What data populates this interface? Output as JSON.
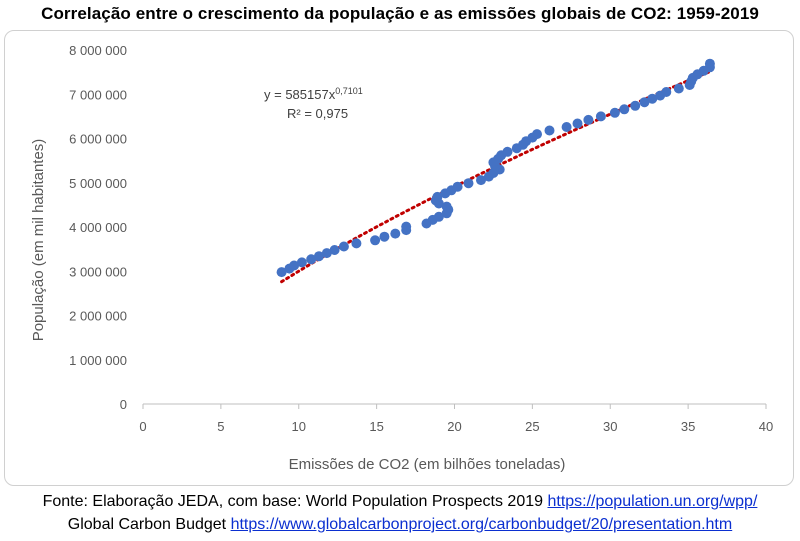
{
  "title": "Correlação entre o crescimento da população e as emissões globais de CO2: 1959-2019",
  "chart_data": {
    "type": "scatter",
    "xlabel": "Emissões de CO2 (em bilhões toneladas)",
    "ylabel": "População (em mil habitantes)",
    "xlim": [
      0,
      40
    ],
    "ylim": [
      0,
      8000000
    ],
    "x_ticks": [
      "0",
      "5",
      "10",
      "15",
      "20",
      "25",
      "30",
      "35",
      "40"
    ],
    "y_ticks": [
      "0",
      "1 000 000",
      "2 000 000",
      "3 000 000",
      "4 000 000",
      "5 000 000",
      "6 000 000",
      "7 000 000",
      "8 000 000"
    ],
    "points": [
      [
        8.9,
        2980000
      ],
      [
        9.4,
        3060000
      ],
      [
        9.7,
        3130000
      ],
      [
        10.2,
        3200000
      ],
      [
        10.8,
        3270000
      ],
      [
        11.3,
        3340000
      ],
      [
        11.8,
        3410000
      ],
      [
        12.3,
        3480000
      ],
      [
        12.9,
        3560000
      ],
      [
        13.7,
        3630000
      ],
      [
        14.9,
        3700000
      ],
      [
        15.5,
        3780000
      ],
      [
        16.2,
        3850000
      ],
      [
        16.9,
        3930000
      ],
      [
        16.9,
        4010000
      ],
      [
        18.2,
        4080000
      ],
      [
        18.6,
        4160000
      ],
      [
        19.0,
        4230000
      ],
      [
        19.5,
        4310000
      ],
      [
        19.6,
        4390000
      ],
      [
        19.5,
        4460000
      ],
      [
        19.0,
        4530000
      ],
      [
        18.8,
        4600000
      ],
      [
        18.9,
        4680000
      ],
      [
        19.4,
        4760000
      ],
      [
        19.8,
        4830000
      ],
      [
        20.2,
        4910000
      ],
      [
        20.9,
        4990000
      ],
      [
        21.7,
        5060000
      ],
      [
        22.2,
        5140000
      ],
      [
        22.5,
        5220000
      ],
      [
        22.9,
        5300000
      ],
      [
        22.6,
        5380000
      ],
      [
        22.5,
        5460000
      ],
      [
        22.8,
        5540000
      ],
      [
        23.0,
        5620000
      ],
      [
        23.4,
        5700000
      ],
      [
        24.0,
        5780000
      ],
      [
        24.4,
        5860000
      ],
      [
        24.6,
        5940000
      ],
      [
        25.0,
        6020000
      ],
      [
        25.3,
        6100000
      ],
      [
        26.1,
        6180000
      ],
      [
        27.2,
        6260000
      ],
      [
        27.9,
        6340000
      ],
      [
        28.6,
        6420000
      ],
      [
        29.4,
        6500000
      ],
      [
        30.3,
        6580000
      ],
      [
        30.9,
        6660000
      ],
      [
        31.6,
        6740000
      ],
      [
        32.2,
        6820000
      ],
      [
        32.7,
        6900000
      ],
      [
        33.2,
        6970000
      ],
      [
        33.6,
        7050000
      ],
      [
        34.4,
        7130000
      ],
      [
        35.1,
        7210000
      ],
      [
        35.2,
        7290000
      ],
      [
        35.3,
        7370000
      ],
      [
        35.6,
        7450000
      ],
      [
        36.0,
        7530000
      ],
      [
        36.4,
        7610000
      ],
      [
        36.4,
        7690000
      ]
    ],
    "trendline": {
      "type": "power",
      "coefficient": 585157,
      "exponent": 0.7101,
      "color": "#c00000",
      "x_range": [
        8.9,
        36.4
      ]
    },
    "equation_text": "y = 585157x",
    "equation_exponent": "0,7101",
    "r_squared_text": "R² = 0,975",
    "marker_color": "#4472c4",
    "grid": false,
    "legend": "none"
  },
  "footer": {
    "line1_text": "Fonte: Elaboração JEDA, com base: World Population Prospects 2019 ",
    "line1_link": "https://population.un.org/wpp/",
    "line2_text": "Global Carbon Budget ",
    "line2_link": "https://www.globalcarbonproject.org/carbonbudget/20/presentation.htm"
  }
}
